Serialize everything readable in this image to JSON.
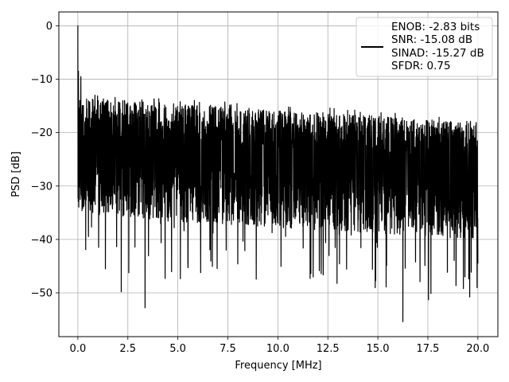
{
  "chart_data": {
    "type": "line",
    "xlabel": "Frequency [MHz]",
    "ylabel": "PSD [dB]",
    "xlim": [
      -0.95,
      21.0
    ],
    "ylim": [
      -58.2,
      2.6
    ],
    "x_ticks": [
      0.0,
      2.5,
      5.0,
      7.5,
      10.0,
      12.5,
      15.0,
      17.5,
      20.0
    ],
    "x_tick_labels": [
      "0.0",
      "2.5",
      "5.0",
      "7.5",
      "10.0",
      "12.5",
      "15.0",
      "17.5",
      "20.0"
    ],
    "y_ticks": [
      0,
      -10,
      -20,
      -30,
      -40,
      -50
    ],
    "y_tick_labels": [
      "0",
      "−10",
      "−20",
      "−30",
      "−40",
      "−50"
    ],
    "grid": true,
    "legend_position": "top-right",
    "series": [
      {
        "name": "ENOB: -2.83 bits\nSNR: -15.08 dB\nSINAD: -15.27 dB\nSFDR: 0.75",
        "legend_lines": [
          "ENOB: -2.83 bits",
          "SNR: -15.08 dB",
          "SINAD: -15.27 dB",
          "SFDR: 0.75"
        ],
        "color": "#000000",
        "x_range": [
          0.0,
          20.0
        ],
        "description": "noise floor fluctuating roughly between -17 and -35 dB with deep dips",
        "key_points": [
          {
            "x": 0.0,
            "y": 0.0
          },
          {
            "x": 0.03,
            "y": -8.5
          },
          {
            "x": 0.06,
            "y": -24.0
          },
          {
            "x": 0.1,
            "y": -14.0
          },
          {
            "x": 0.2,
            "y": -26.0
          },
          {
            "x": 0.15,
            "y": -9.5
          },
          {
            "x": 2.17,
            "y": -49.8
          },
          {
            "x": 3.36,
            "y": -52.8
          },
          {
            "x": 16.25,
            "y": -55.4
          },
          {
            "x": 17.53,
            "y": -51.3
          },
          {
            "x": 20.0,
            "y": -44.5
          }
        ]
      }
    ]
  }
}
